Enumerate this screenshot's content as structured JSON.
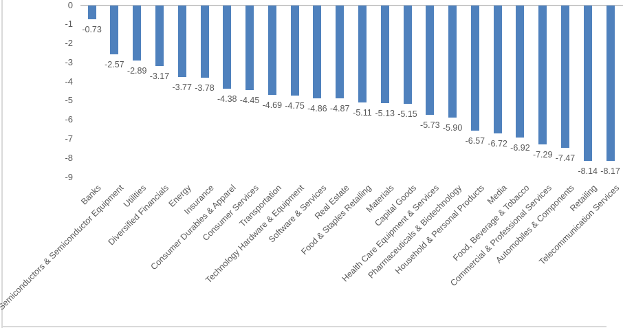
{
  "chart_data": {
    "type": "bar",
    "title": "",
    "xlabel": "",
    "ylabel": "",
    "ylim": [
      -9,
      0
    ],
    "grid": false,
    "legend": "none",
    "bar_color": "#4f81bd",
    "text_color": "#595959",
    "zero_line_color": "#c9c9c9",
    "frame_line_color": "#d9d9d9",
    "ytick_labels": [
      "0",
      "-1",
      "-2",
      "-3",
      "-4",
      "-5",
      "-6",
      "-7",
      "-8",
      "-9"
    ],
    "categories": [
      "Banks",
      "Semiconductors & Semiconductor Equipment",
      "Utilities",
      "Diversified Financials",
      "Energy",
      "Insurance",
      "Consumer Durables & Apparel",
      "Consumer Services",
      "Transportation",
      "Technology Hardware & Equipment",
      "Software & Services",
      "Real Estate",
      "Food & Staples Retailing",
      "Materials",
      "Capital Goods",
      "Health Care Equipment & Services",
      "Pharmaceuticals & Biotechnology",
      "Household & Personal Products",
      "Media",
      "Food, Beverage & Tobacco",
      "Commercial  & Professional Services",
      "Automobiles & Components",
      "Retailing",
      "Telecommunication Services"
    ],
    "values": [
      -0.73,
      -2.57,
      -2.89,
      -3.17,
      -3.77,
      -3.78,
      -4.38,
      -4.45,
      -4.69,
      -4.75,
      -4.86,
      -4.87,
      -5.11,
      -5.13,
      -5.15,
      -5.73,
      -5.9,
      -6.57,
      -6.72,
      -6.92,
      -7.29,
      -7.47,
      -8.14,
      -8.17
    ],
    "value_labels": [
      "-0.73",
      "-2.57",
      "-2.89",
      "-3.17",
      "-3.77",
      "-3.78",
      "-4.38",
      "-4.45",
      "-4.69",
      "-4.75",
      "-4.86",
      "-4.87",
      "-5.11",
      "-5.13",
      "-5.15",
      "-5.73",
      "-5.90",
      "-6.57",
      "-6.72",
      "-6.92",
      "-7.29",
      "-7.47",
      "-8.14",
      "-8.17"
    ]
  }
}
